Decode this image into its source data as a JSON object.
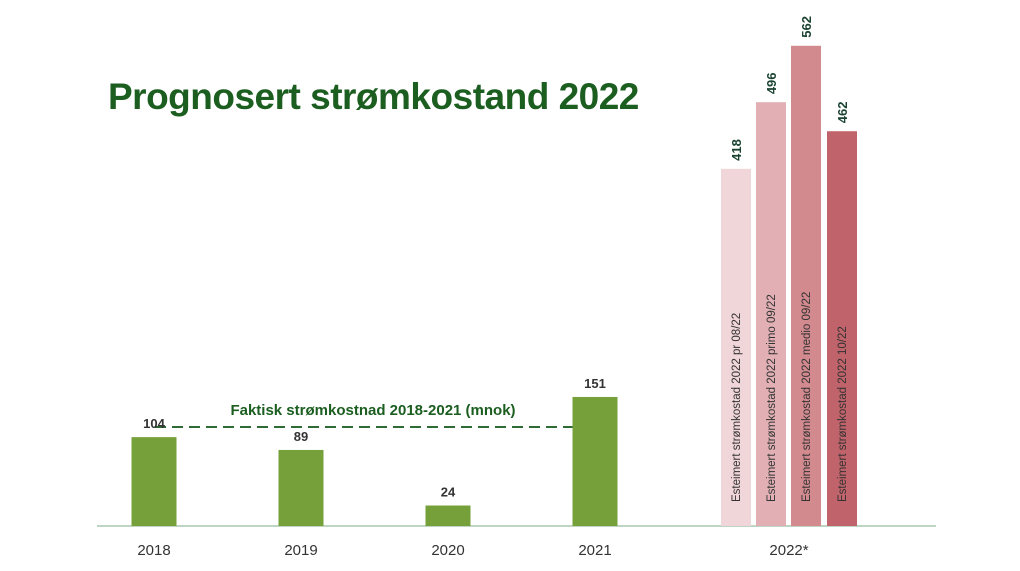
{
  "chart_data": {
    "type": "bar",
    "title": "Prognosert strømkostand 2022",
    "xlabel": "",
    "ylabel": "",
    "ylim": [
      0,
      600
    ],
    "grid": false,
    "annotation": "Faktisk strømkostnad 2018-2021 (mnok)",
    "actual": {
      "categories": [
        "2018",
        "2019",
        "2020",
        "2021"
      ],
      "values": [
        104,
        89,
        24,
        151
      ],
      "color": "#76a03a"
    },
    "estimate_category": "2022*",
    "estimates": [
      {
        "label": "Esteimert strømkostad 2022 pr 08/22",
        "value": 418,
        "color": "#f1d6d9"
      },
      {
        "label": "Esteimert strømkostad 2022 primo  09/22",
        "value": 496,
        "color": "#e2b0b4"
      },
      {
        "label": "Esteimert strømkostad 2022 medio  09/22",
        "value": 562,
        "color": "#d28a8f"
      },
      {
        "label": "Esteimert strømkostad 2022 10/22",
        "value": 462,
        "color": "#c0636a"
      }
    ],
    "colors": {
      "title": "#1b5e20",
      "annotation": "#1b5e20",
      "dash": "#2e6b35",
      "baseline": "#a8c7b0",
      "value_text": "#333333",
      "estimate_value_text": "#1b4332"
    }
  }
}
